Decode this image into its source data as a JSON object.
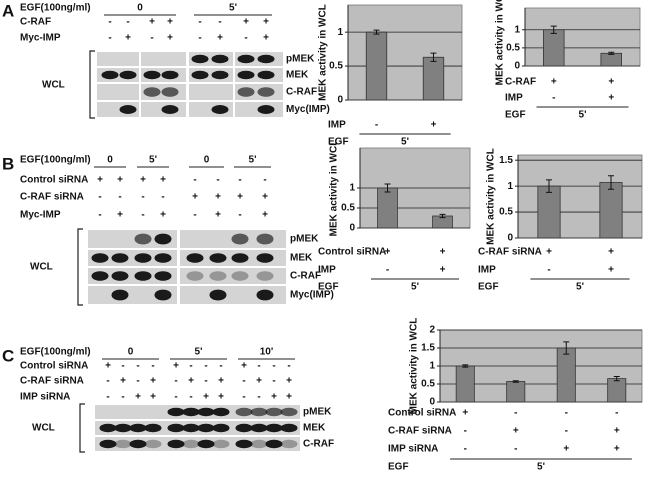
{
  "panels": [
    {
      "letter": "A",
      "treatments": [
        {
          "label": "EGF(100ng/ml)",
          "groups": [
            "0",
            "5'"
          ]
        },
        {
          "label": "C-RAF",
          "marks": [
            "-",
            "-",
            "+",
            "+",
            "-",
            "-",
            "+",
            "+"
          ]
        },
        {
          "label": "Myc-IMP",
          "marks": [
            "-",
            "+",
            "-",
            "+",
            "-",
            "+",
            "-",
            "+"
          ]
        }
      ],
      "blot_group": "WCL",
      "bands": [
        "pMEK",
        "MEK",
        "C-RAF",
        "Myc(IMP)"
      ]
    },
    {
      "letter": "B",
      "treatments": [
        {
          "label": "EGF(100ng/ml)",
          "groups": [
            "0",
            "5'",
            "0",
            "5'"
          ]
        },
        {
          "label": "Control siRNA",
          "marks": [
            "+",
            "+",
            "+",
            "+",
            "-",
            "-",
            "-",
            "-"
          ]
        },
        {
          "label": "C-RAF siRNA",
          "marks": [
            "-",
            "-",
            "-",
            "-",
            "+",
            "+",
            "+",
            "+"
          ]
        },
        {
          "label": "Myc-IMP",
          "marks": [
            "-",
            "+",
            "-",
            "+",
            "-",
            "+",
            "-",
            "+"
          ]
        }
      ],
      "blot_group": "WCL",
      "bands": [
        "pMEK",
        "MEK",
        "C-RAF",
        "Myc(IMP)"
      ]
    },
    {
      "letter": "C",
      "treatments": [
        {
          "label": "EGF(100ng/ml)",
          "groups": [
            "0",
            "5'",
            "10'"
          ]
        },
        {
          "label": "Control siRNA",
          "marks": [
            "+",
            "-",
            "-",
            "-",
            "+",
            "-",
            "-",
            "-",
            "+",
            "-",
            "-",
            "-"
          ]
        },
        {
          "label": "C-RAF siRNA",
          "marks": [
            "-",
            "+",
            "-",
            "+",
            "-",
            "+",
            "-",
            "+",
            "-",
            "+",
            "-",
            "+"
          ]
        },
        {
          "label": "IMP siRNA",
          "marks": [
            "-",
            "-",
            "+",
            "+",
            "-",
            "-",
            "+",
            "+",
            "-",
            "-",
            "+",
            "+"
          ]
        }
      ],
      "blot_group": "WCL",
      "bands": [
        "pMEK",
        "MEK",
        "C-RAF"
      ]
    }
  ],
  "chart_data": [
    {
      "type": "bar",
      "y_label": "MEK activity in WCL",
      "values": [
        1,
        0.63
      ],
      "errors": [
        0.03,
        0.06
      ],
      "color": "#808080",
      "ylim": [
        0,
        1.4
      ],
      "yticks": [
        0,
        0.5,
        1
      ],
      "grid": true,
      "conditions": [
        {
          "label": "IMP",
          "marks": [
            "-",
            "+"
          ]
        },
        {
          "label": "EGF",
          "marks": [
            "5'"
          ]
        }
      ]
    },
    {
      "type": "bar",
      "y_label": "MEK activity in WCL",
      "values": [
        1,
        0.35
      ],
      "errors": [
        0.1,
        0.03
      ],
      "color": "#808080",
      "ylim": [
        0,
        1.6
      ],
      "yticks": [
        0,
        0.5,
        1
      ],
      "grid": true,
      "conditions": [
        {
          "label": "C-RAF",
          "marks": [
            "+",
            "+"
          ]
        },
        {
          "label": "IMP",
          "marks": [
            "-",
            "+"
          ]
        },
        {
          "label": "EGF",
          "marks": [
            "5'"
          ]
        }
      ]
    },
    {
      "type": "bar",
      "y_label": "MEK activity in WCL",
      "values": [
        1,
        0.3
      ],
      "errors": [
        0.1,
        0.04
      ],
      "color": "#808080",
      "ylim": [
        0,
        2
      ],
      "yticks": [
        0,
        0.5,
        1
      ],
      "grid": true,
      "conditions": [
        {
          "label": "Control siRNA",
          "marks": [
            "+",
            "+"
          ]
        },
        {
          "label": "IMP",
          "marks": [
            "-",
            "+"
          ]
        },
        {
          "label": "EGF",
          "marks": [
            "5'"
          ]
        }
      ]
    },
    {
      "type": "bar",
      "y_label": "MEK activity in WCL",
      "values": [
        1,
        1.07
      ],
      "errors": [
        0.12,
        0.13
      ],
      "color": "#808080",
      "ylim": [
        0,
        1.6
      ],
      "yticks": [
        0,
        0.5,
        1,
        1.5
      ],
      "grid": true,
      "conditions": [
        {
          "label": "C-RAF siRNA",
          "marks": [
            "+",
            "+"
          ]
        },
        {
          "label": "IMP",
          "marks": [
            "-",
            "+"
          ]
        },
        {
          "label": "EGF",
          "marks": [
            "5'"
          ]
        }
      ]
    },
    {
      "type": "bar",
      "y_label": "MEK activity in WCL",
      "values": [
        1,
        0.57,
        1.5,
        0.65
      ],
      "errors": [
        0.03,
        0.02,
        0.17,
        0.06
      ],
      "color": "#808080",
      "ylim": [
        0,
        2
      ],
      "yticks": [
        0,
        0.5,
        1,
        1.5,
        2
      ],
      "grid": true,
      "conditions": [
        {
          "label": "Control siRNA",
          "marks": [
            "+",
            "-",
            "-",
            "-"
          ]
        },
        {
          "label": "C-RAF siRNA",
          "marks": [
            "-",
            "+",
            "-",
            "+"
          ]
        },
        {
          "label": "IMP siRNA",
          "marks": [
            "-",
            "-",
            "+",
            "+"
          ]
        },
        {
          "label": "EGF",
          "marks": [
            "5'"
          ]
        }
      ]
    }
  ]
}
